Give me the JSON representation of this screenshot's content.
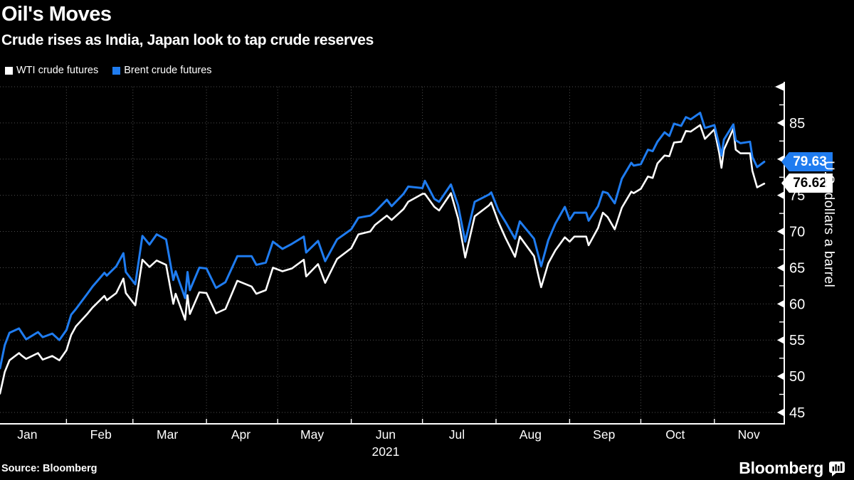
{
  "header": {
    "title": "Oil's Moves",
    "subtitle": "Crude rises as India, Japan look to tap crude reserves"
  },
  "legend": [
    {
      "label": "WTI crude futures",
      "color": "#ffffff"
    },
    {
      "label": "Brent crude futures",
      "color": "#1f7cf0"
    }
  ],
  "colors": {
    "background": "#000000",
    "text": "#ffffff",
    "grid": "#4e4e4e",
    "wti": "#ffffff",
    "brent": "#1f7cf0"
  },
  "footer": {
    "source": "Source: Bloomberg",
    "brand": "Bloomberg"
  },
  "chart_data": {
    "type": "line",
    "title": "Oil's Moves",
    "subtitle": "Crude rises as India, Japan look to tap crude reserves",
    "ylabel": "U.S. dollars a barrel",
    "x_unit": "day of year 2021",
    "grid": "dotted",
    "legend_position": "top-left",
    "x_axis": {
      "months": [
        "Jan",
        "Feb",
        "Mar",
        "Apr",
        "May",
        "Jun",
        "Jul",
        "Aug",
        "Sep",
        "Oct",
        "Nov"
      ],
      "month_start_days": [
        1,
        32,
        60,
        91,
        121,
        152,
        182,
        213,
        244,
        274,
        305
      ],
      "year_label": "2021",
      "year_under_month": "Jun"
    },
    "y_axis": {
      "ticks": [
        45,
        50,
        55,
        60,
        65,
        70,
        75,
        80,
        85
      ],
      "minor_step": 2.5,
      "range": [
        43.4,
        90
      ]
    },
    "x_days": [
      4,
      6,
      8,
      12,
      13,
      15,
      20,
      22,
      26,
      29,
      32,
      34,
      36,
      41,
      43,
      48,
      49,
      53,
      56,
      57,
      61,
      64,
      67,
      70,
      74,
      77,
      78,
      82,
      83,
      84,
      88,
      91,
      95,
      99,
      104,
      110,
      112,
      116,
      119,
      123,
      127,
      132,
      133,
      138,
      141,
      146,
      152,
      155,
      160,
      162,
      167,
      169,
      174,
      176,
      182,
      183,
      187,
      189,
      194,
      197,
      200,
      204,
      210,
      211,
      214,
      217,
      221,
      223,
      225,
      229,
      231,
      232,
      235,
      238,
      242,
      244,
      246,
      251,
      252,
      256,
      258,
      260,
      263,
      266,
      270,
      271,
      274,
      277,
      279,
      281,
      284,
      286,
      288,
      291,
      293,
      295,
      299,
      301,
      305,
      307,
      308,
      309,
      313,
      314,
      316,
      320,
      321,
      323,
      326
    ],
    "series": [
      {
        "name": "WTI crude futures",
        "color": "#ffffff",
        "width": 2.6,
        "last_value": 76.62,
        "last_label": "76.62",
        "values": [
          47.6,
          50.6,
          52.2,
          53.2,
          52.9,
          52.4,
          53.2,
          52.3,
          52.8,
          52.2,
          53.6,
          55.7,
          56.9,
          58.7,
          59.5,
          61.1,
          60.5,
          61.5,
          63.5,
          61.5,
          59.8,
          66.1,
          65.1,
          66.0,
          65.4,
          60.0,
          61.4,
          57.8,
          61.2,
          58.6,
          61.6,
          61.5,
          58.7,
          59.3,
          63.2,
          62.4,
          61.4,
          61.9,
          65.0,
          64.5,
          64.9,
          66.1,
          63.8,
          65.5,
          62.9,
          66.2,
          67.7,
          69.6,
          70.0,
          70.9,
          72.2,
          71.6,
          73.1,
          74.1,
          75.2,
          75.2,
          73.4,
          72.9,
          75.3,
          71.8,
          66.4,
          72.1,
          73.6,
          74.0,
          71.3,
          69.1,
          66.5,
          69.3,
          68.4,
          66.6,
          63.7,
          62.3,
          65.6,
          67.4,
          69.2,
          68.6,
          69.3,
          69.3,
          68.1,
          70.5,
          72.6,
          72.0,
          70.3,
          73.3,
          75.5,
          75.3,
          75.9,
          77.6,
          77.4,
          79.4,
          80.5,
          80.4,
          82.3,
          82.4,
          83.9,
          83.8,
          84.7,
          82.8,
          84.1,
          80.9,
          78.8,
          81.3,
          84.2,
          81.3,
          80.8,
          80.8,
          78.4,
          76.1,
          76.62
        ]
      },
      {
        "name": "Brent crude futures",
        "color": "#1f7cf0",
        "width": 3,
        "last_value": 79.63,
        "last_label": "79.63",
        "values": [
          51.1,
          54.3,
          56.0,
          56.6,
          56.1,
          55.1,
          56.1,
          55.4,
          55.9,
          55.0,
          56.4,
          58.5,
          59.3,
          61.5,
          62.4,
          64.3,
          63.9,
          65.2,
          67.0,
          64.4,
          62.7,
          69.4,
          68.2,
          69.6,
          68.9,
          63.3,
          64.5,
          60.8,
          64.4,
          61.9,
          65.0,
          64.9,
          62.2,
          63.0,
          66.6,
          66.6,
          65.4,
          65.7,
          68.6,
          67.6,
          68.3,
          69.3,
          67.1,
          68.7,
          65.9,
          68.9,
          70.3,
          71.9,
          72.2,
          72.7,
          74.4,
          73.5,
          75.2,
          76.2,
          76.0,
          77.0,
          74.5,
          74.1,
          76.5,
          73.6,
          68.6,
          74.1,
          75.1,
          75.4,
          72.9,
          71.3,
          69.0,
          71.4,
          70.6,
          69.0,
          66.5,
          65.2,
          68.8,
          71.1,
          73.4,
          71.6,
          72.6,
          72.6,
          71.5,
          73.5,
          75.5,
          75.3,
          73.9,
          77.3,
          79.5,
          79.1,
          79.3,
          81.3,
          81.1,
          82.4,
          83.7,
          83.2,
          84.9,
          84.6,
          85.8,
          85.5,
          86.4,
          84.3,
          84.7,
          82.0,
          80.5,
          82.7,
          84.8,
          82.6,
          82.2,
          82.4,
          80.3,
          78.9,
          79.63
        ]
      }
    ]
  }
}
